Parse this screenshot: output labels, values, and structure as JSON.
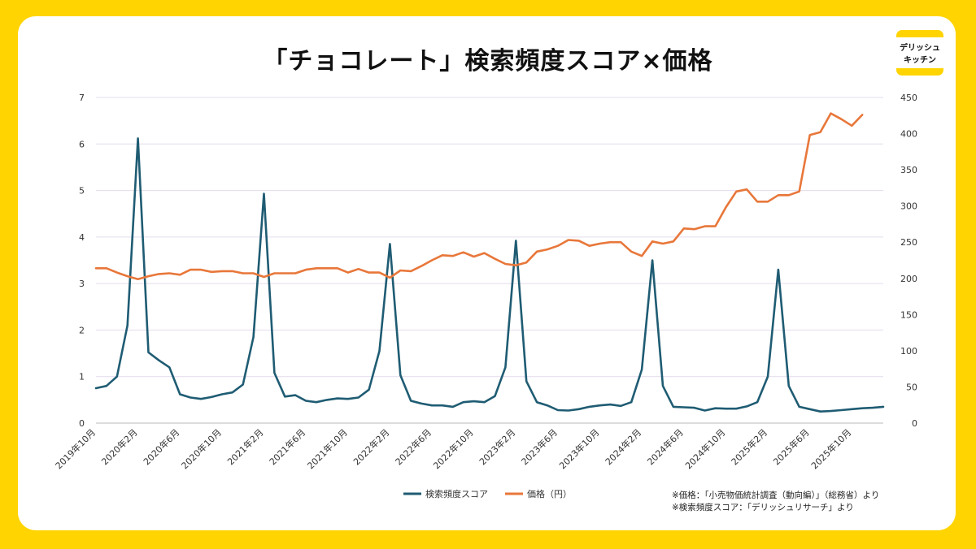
{
  "title": "「チョコレート」検索頻度スコア×価格",
  "logo": {
    "line1": "デリッシュ",
    "line2": "キッチン"
  },
  "sources": [
    "※価格：「小売物価統計調査（動向編）」（総務省）より",
    "※検索頻度スコア：「デリッシュリサーチ」より"
  ],
  "colors": {
    "search": "#1F5C73",
    "price": "#E8773A",
    "grid": "#E4DCEB",
    "background": "#FFD400"
  },
  "chart_data": {
    "type": "line",
    "title": "「チョコレート」検索頻度スコア×価格",
    "x_start": "2019-10",
    "x_tick_labels": [
      "2019年10月",
      "2020年2月",
      "2020年6月",
      "2020年10月",
      "2021年2月",
      "2021年6月",
      "2021年10月",
      "2022年2月",
      "2022年6月",
      "2022年10月",
      "2023年2月",
      "2023年6月",
      "2023年10月",
      "2024年2月",
      "2024年6月",
      "2024年10月",
      "2025年2月",
      "2025年6月",
      "2025年10月"
    ],
    "x_tick_step_months": 4,
    "y_left": {
      "min": 0,
      "max": 7,
      "ticks": [
        0,
        1,
        2,
        3,
        4,
        5,
        6,
        7
      ]
    },
    "y_right": {
      "min": 0,
      "max": 450,
      "ticks": [
        0,
        50,
        100,
        150,
        200,
        250,
        300,
        350,
        400,
        450
      ]
    },
    "series": [
      {
        "name": "検索頻度スコア",
        "axis": "left",
        "values": [
          0.75,
          0.8,
          1.0,
          2.1,
          6.12,
          1.52,
          1.35,
          1.2,
          0.62,
          0.55,
          0.52,
          0.56,
          0.62,
          0.66,
          0.83,
          1.85,
          4.93,
          1.08,
          0.57,
          0.6,
          0.48,
          0.45,
          0.5,
          0.53,
          0.52,
          0.55,
          0.72,
          1.55,
          3.85,
          1.03,
          0.48,
          0.42,
          0.38,
          0.38,
          0.35,
          0.45,
          0.47,
          0.45,
          0.58,
          1.2,
          3.92,
          0.9,
          0.45,
          0.38,
          0.28,
          0.27,
          0.3,
          0.35,
          0.38,
          0.4,
          0.37,
          0.45,
          1.15,
          3.5,
          0.8,
          0.35,
          0.34,
          0.33,
          0.27,
          0.32,
          0.31,
          0.31,
          0.36,
          0.45,
          1.0,
          3.3,
          0.8,
          0.35,
          0.3,
          0.25,
          0.26,
          0.28,
          0.3,
          0.32,
          0.33,
          0.35
        ]
      },
      {
        "name": "価格（円）",
        "axis": "right",
        "values": [
          214,
          214,
          208,
          203,
          199,
          203,
          206,
          207,
          205,
          212,
          212,
          209,
          210,
          210,
          207,
          207,
          202,
          207,
          207,
          207,
          212,
          214,
          214,
          214,
          208,
          213,
          208,
          208,
          201,
          211,
          210,
          217,
          225,
          232,
          231,
          236,
          230,
          235,
          227,
          220,
          218,
          222,
          237,
          240,
          245,
          253,
          252,
          245,
          248,
          250,
          250,
          237,
          231,
          251,
          248,
          251,
          269,
          268,
          272,
          272,
          298,
          320,
          323,
          306,
          306,
          315,
          315,
          320,
          398,
          402,
          428,
          420,
          411,
          426
        ]
      }
    ],
    "legend": [
      "検索頻度スコア",
      "価格（円）"
    ],
    "legend_position": "bottom",
    "grid": true
  }
}
